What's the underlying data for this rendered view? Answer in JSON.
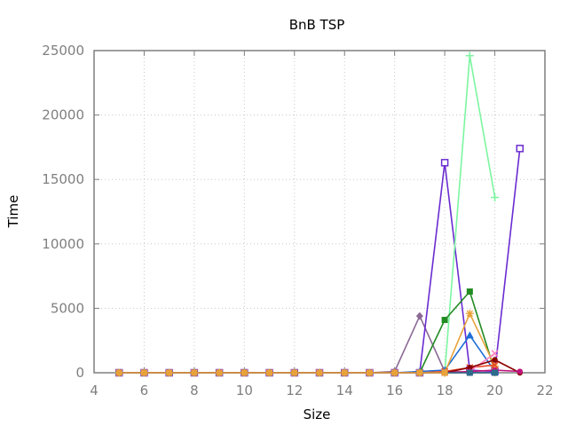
{
  "chart_data": {
    "type": "line",
    "title": "BnB TSP",
    "xlabel": "Size",
    "ylabel": "Time",
    "xlim": [
      4,
      22
    ],
    "ylim": [
      0,
      25000
    ],
    "xticks": [
      4,
      6,
      8,
      10,
      12,
      14,
      16,
      18,
      20,
      22
    ],
    "yticks": [
      0,
      5000,
      10000,
      15000,
      20000,
      25000
    ],
    "grid": true,
    "series": [
      {
        "color": "#7f7f7f",
        "marker": "circle",
        "x": [
          5,
          6,
          7,
          8,
          9,
          10,
          11,
          12,
          13,
          14,
          15,
          16,
          17,
          18,
          19,
          20
        ],
        "y": [
          0,
          0,
          0,
          0,
          0,
          0,
          0,
          0,
          0,
          0,
          0,
          0,
          0,
          0,
          0,
          0
        ]
      },
      {
        "color": "#8c6a96",
        "marker": "diamond",
        "x": [
          5,
          6,
          7,
          8,
          9,
          10,
          11,
          12,
          13,
          14,
          15,
          16,
          17,
          18,
          19,
          20
        ],
        "y": [
          0,
          0,
          0,
          0,
          0,
          0,
          0,
          0,
          0,
          0,
          0,
          100,
          4400,
          100,
          50,
          20
        ]
      },
      {
        "color": "#6a2bd1",
        "marker": "square-open",
        "x": [
          5,
          6,
          7,
          8,
          9,
          10,
          11,
          12,
          13,
          14,
          15,
          16,
          17,
          18,
          19,
          20,
          21
        ],
        "y": [
          0,
          0,
          0,
          0,
          0,
          0,
          0,
          0,
          0,
          0,
          0,
          0,
          0,
          16300,
          200,
          100,
          17400
        ]
      },
      {
        "color": "#7cf5a0",
        "marker": "plus",
        "x": [
          5,
          6,
          7,
          8,
          9,
          10,
          11,
          12,
          13,
          14,
          15,
          16,
          17,
          18,
          19,
          20
        ],
        "y": [
          0,
          0,
          0,
          0,
          0,
          0,
          0,
          0,
          0,
          0,
          0,
          0,
          0,
          0,
          24600,
          13600
        ]
      },
      {
        "color": "#228b22",
        "marker": "square",
        "x": [
          5,
          6,
          7,
          8,
          9,
          10,
          11,
          12,
          13,
          14,
          15,
          16,
          17,
          18,
          19,
          20
        ],
        "y": [
          0,
          0,
          0,
          0,
          0,
          0,
          0,
          0,
          0,
          0,
          0,
          0,
          0,
          4100,
          6300,
          100
        ]
      },
      {
        "color": "#1f6fd6",
        "marker": "triangle",
        "x": [
          5,
          6,
          7,
          8,
          9,
          10,
          11,
          12,
          13,
          14,
          15,
          16,
          17,
          18,
          19,
          20
        ],
        "y": [
          0,
          0,
          0,
          0,
          0,
          0,
          0,
          0,
          0,
          0,
          0,
          0,
          100,
          200,
          2900,
          100
        ]
      },
      {
        "color": "#e8a23a",
        "marker": "star",
        "x": [
          5,
          6,
          7,
          8,
          9,
          10,
          11,
          12,
          13,
          14,
          15,
          16,
          17,
          18,
          19,
          20
        ],
        "y": [
          0,
          0,
          0,
          0,
          0,
          0,
          0,
          0,
          0,
          0,
          0,
          0,
          0,
          0,
          4600,
          500
        ]
      },
      {
        "color": "#e84a2a",
        "marker": "x",
        "x": [
          5,
          6,
          7,
          8,
          9,
          10,
          11,
          12,
          13,
          14,
          15,
          16,
          17,
          18,
          19,
          20
        ],
        "y": [
          0,
          0,
          0,
          0,
          0,
          0,
          0,
          0,
          0,
          0,
          0,
          0,
          0,
          100,
          400,
          600
        ]
      },
      {
        "color": "#ff80c0",
        "marker": "x",
        "x": [
          5,
          6,
          7,
          8,
          9,
          10,
          11,
          12,
          13,
          14,
          15,
          16,
          17,
          18,
          19,
          20
        ],
        "y": [
          0,
          0,
          0,
          0,
          0,
          0,
          0,
          0,
          0,
          0,
          0,
          0,
          0,
          0,
          100,
          1500
        ]
      },
      {
        "color": "#8b0000",
        "marker": "circle",
        "x": [
          5,
          6,
          7,
          8,
          9,
          10,
          11,
          12,
          13,
          14,
          15,
          16,
          17,
          18,
          19,
          20,
          21
        ],
        "y": [
          0,
          0,
          0,
          0,
          0,
          0,
          0,
          0,
          0,
          0,
          0,
          0,
          0,
          0,
          400,
          1000,
          0
        ]
      },
      {
        "color": "#c0147c",
        "marker": "circle",
        "x": [
          5,
          6,
          7,
          8,
          9,
          10,
          11,
          12,
          13,
          14,
          15,
          16,
          17,
          18,
          19,
          20,
          21
        ],
        "y": [
          0,
          0,
          0,
          0,
          0,
          0,
          0,
          0,
          0,
          0,
          0,
          0,
          0,
          0,
          100,
          200,
          100
        ]
      },
      {
        "color": "#2d6b8a",
        "marker": "square",
        "x": [
          5,
          6,
          7,
          8,
          9,
          10,
          11,
          12,
          13,
          14,
          15,
          16,
          17,
          18,
          19,
          20
        ],
        "y": [
          0,
          0,
          0,
          0,
          0,
          0,
          0,
          0,
          0,
          0,
          0,
          0,
          0,
          0,
          0,
          0
        ]
      },
      {
        "color": "#e8a23a",
        "marker": "square",
        "x": [
          5,
          6,
          7,
          8,
          9,
          10,
          11,
          12,
          13,
          14,
          15,
          16,
          17,
          18
        ],
        "y": [
          0,
          0,
          0,
          0,
          0,
          0,
          0,
          0,
          0,
          0,
          0,
          0,
          0,
          0
        ]
      }
    ]
  }
}
